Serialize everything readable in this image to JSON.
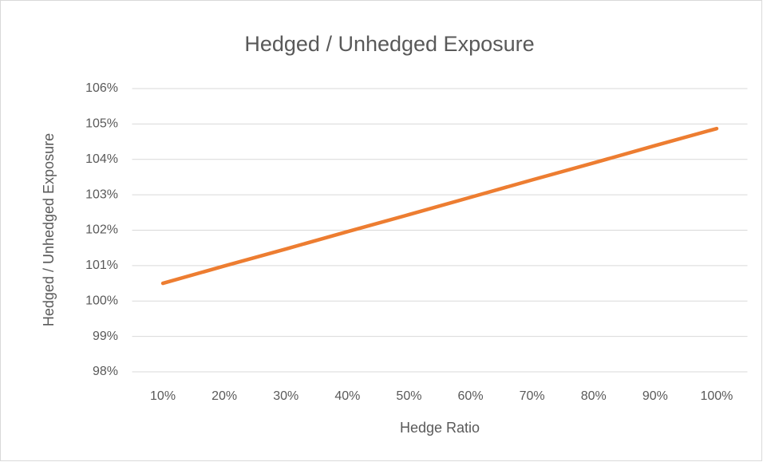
{
  "chart_data": {
    "type": "line",
    "title": "Hedged / Unhedged Exposure",
    "x_label": "Hedge Ratio",
    "y_label": "Hedged / Unhedged Exposure",
    "categories": [
      "10%",
      "20%",
      "30%",
      "40%",
      "50%",
      "60%",
      "70%",
      "80%",
      "90%",
      "100%"
    ],
    "series": [
      {
        "name": "Hedged / Unhedged Exposure",
        "color": "#ed7d31",
        "values": [
          100.5,
          100.99,
          101.47,
          101.96,
          102.44,
          102.93,
          103.42,
          103.9,
          104.39,
          104.87
        ]
      }
    ],
    "ylim": [
      98,
      106
    ],
    "yticks": [
      {
        "value": 98,
        "label": "98%"
      },
      {
        "value": 99,
        "label": "99%"
      },
      {
        "value": 100,
        "label": "100%"
      },
      {
        "value": 101,
        "label": "101%"
      },
      {
        "value": 102,
        "label": "102%"
      },
      {
        "value": 103,
        "label": "103%"
      },
      {
        "value": 104,
        "label": "104%"
      },
      {
        "value": 105,
        "label": "105%"
      },
      {
        "value": 106,
        "label": "106%"
      }
    ],
    "grid": true
  }
}
